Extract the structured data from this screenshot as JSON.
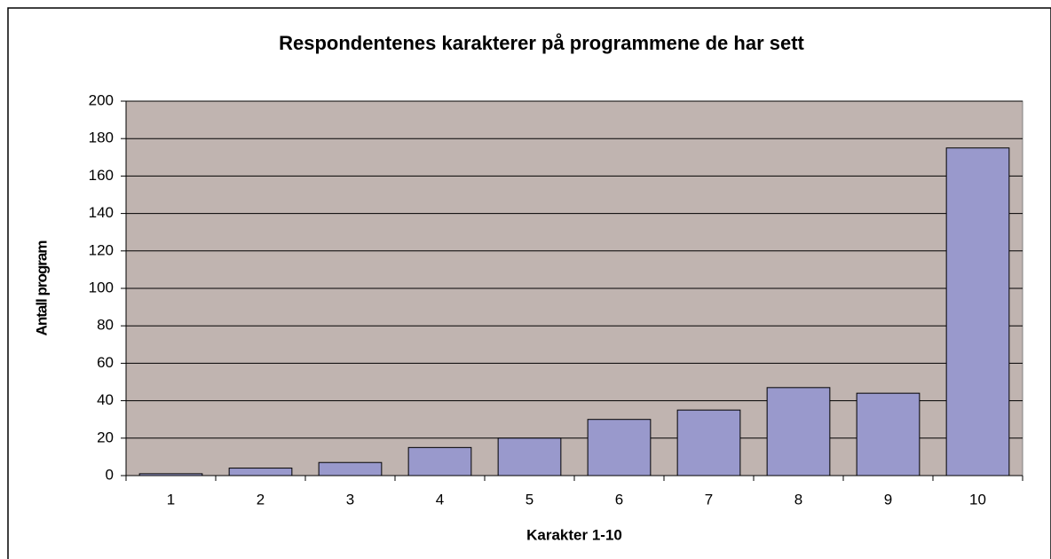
{
  "chart_data": {
    "type": "bar",
    "title": "Respondentenes karakterer på programmene de har sett",
    "x_label": "Karakter 1-10",
    "y_label": "Antall program",
    "categories": [
      "1",
      "2",
      "3",
      "4",
      "5",
      "6",
      "7",
      "8",
      "9",
      "10"
    ],
    "values": [
      1,
      4,
      7,
      15,
      20,
      30,
      35,
      47,
      44,
      175
    ],
    "color": "#9999cc",
    "plot_background": "#c0b4b0",
    "ylim": [
      0,
      200
    ],
    "yticks": [
      0,
      20,
      40,
      60,
      80,
      100,
      120,
      140,
      160,
      180,
      200
    ],
    "grid": true
  }
}
